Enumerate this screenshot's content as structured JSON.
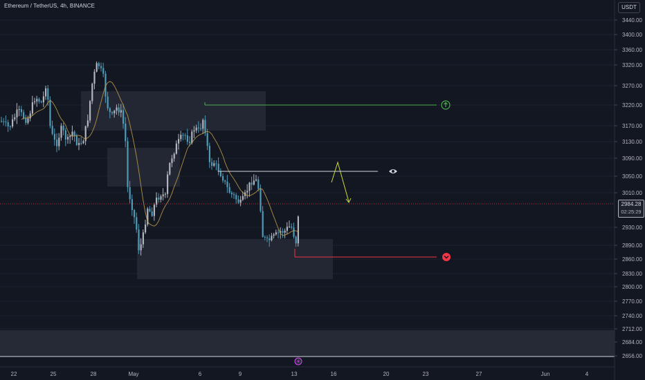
{
  "header": {
    "symbol_title": "Ethereum / TetherUS, 4h, BINANCE"
  },
  "currency_selector": {
    "label": "USDT"
  },
  "last_price": {
    "value": "2984.28",
    "countdown": "02:25:29"
  },
  "chart_data": {
    "type": "candlestick",
    "symbol": "Ethereum / TetherUS",
    "interval": "4h",
    "exchange": "BINANCE",
    "y_ticks": [
      "3440.00",
      "3400.00",
      "3360.00",
      "3320.00",
      "3270.00",
      "3220.00",
      "3170.00",
      "3130.00",
      "3090.00",
      "3050.00",
      "3010.00",
      "2930.00",
      "2890.00",
      "2860.00",
      "2830.00",
      "2800.00",
      "2770.00",
      "2740.00",
      "2712.00",
      "2684.00",
      "2656.00"
    ],
    "x_ticks": [
      "22",
      "25",
      "28",
      "May",
      "6",
      "9",
      "13",
      "16",
      "20",
      "23",
      "27",
      "Jun",
      "4"
    ],
    "last_price": 2984.28,
    "colors": {
      "up": "#b2b5be",
      "down": "#4e9bb7",
      "ma": "#c4a24c",
      "target": "#4caf50",
      "stop": "#f23645",
      "entry": "#d1d4dc",
      "projection": "#cddc39"
    }
  }
}
